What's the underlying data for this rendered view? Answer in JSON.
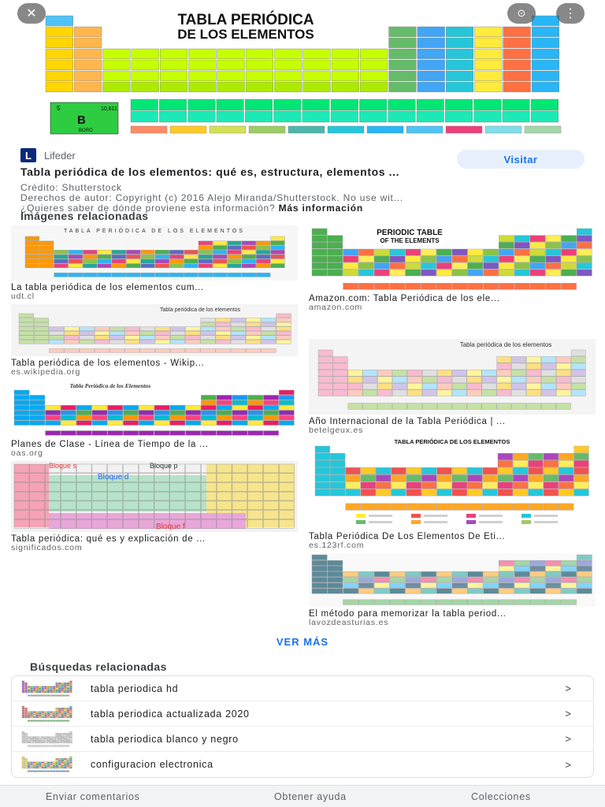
{
  "hero": {
    "close_icon": "close-icon",
    "lens_icon": "google-lens-icon",
    "more_icon": "more-vert-icon",
    "title_line1": "TABLA PERIÓDICA",
    "title_line2": "DE LOS ELEMENTOS",
    "legend_symbol": "B",
    "legend_name": "BORO",
    "legend_mass": "10,811",
    "legend_number": "5"
  },
  "source": {
    "logo_letter": "L",
    "name": "Lifeder",
    "title": "Tabla periódica de los elementos: qué es, estructura, elementos ...",
    "visit_label": "Visitar",
    "credit": "Crédito: Shutterstock",
    "copyright": "Derechos de autor: Copyright (c) 2016 Alejo Miranda/Shutterstock. No use wit...",
    "question": "¿Quieres saber de dónde proviene esta información?",
    "more_info": "Más información"
  },
  "related_images": {
    "title": "Imágenes relacionadas",
    "items": [
      {
        "caption": "La tabla periódica de los elementos cum...",
        "site": "udt.cl",
        "thumb_title": "TABLA PERIÓDICA DE LOS ELEMENTOS"
      },
      {
        "caption": "Amazon.com: Tabla Periódica de los ele...",
        "site": "amazon.com",
        "thumb_title": "PERIODIC TABLE",
        "thumb_subtitle": "OF THE ELEMENTS"
      },
      {
        "caption": "Tabla periódica de los elementos - Wikip...",
        "site": "es.wikipedia.org",
        "thumb_title": "Tabla periódica de los elementos"
      },
      {
        "caption": "Año Internacional de la Tabla Periódica | ...",
        "site": "betelgeux.es",
        "thumb_title": "Tabla periódica de los elementos"
      },
      {
        "caption": "Planes de Clase - Línea de Tiempo de la ...",
        "site": "oas.org",
        "thumb_title": "Tabla Periódica de los Elementos"
      },
      {
        "caption": "Tabla Periódica De Los Elementos De Eti...",
        "site": "es.123rf.com",
        "thumb_title": "TABLA PERIÓDICA DE LOS ELEMENTOS"
      },
      {
        "caption": "Tabla periódica: qué es y explicación de ...",
        "site": "significados.com",
        "thumb_title": "Bloque s",
        "thumb_block_p": "Bloque p",
        "thumb_block_d": "Bloque d",
        "thumb_block_f": "Bloque f"
      },
      {
        "caption": "El método para memorizar la tabla period...",
        "site": "lavozdeasturias.es"
      }
    ]
  },
  "ver_mas": "VER MÁS",
  "related_searches": {
    "title": "Búsquedas relacionadas",
    "items": [
      {
        "label": "tabla periodica hd",
        "chevron": ">"
      },
      {
        "label": "tabla periodica actualizada 2020",
        "chevron": ">"
      },
      {
        "label": "tabla periodica blanco y negro",
        "chevron": ">"
      },
      {
        "label": "configuracion electronica",
        "chevron": ">"
      }
    ]
  },
  "footer": {
    "feedback": "Enviar comentarios",
    "help": "Obtener ayuda",
    "collections": "Colecciones"
  }
}
